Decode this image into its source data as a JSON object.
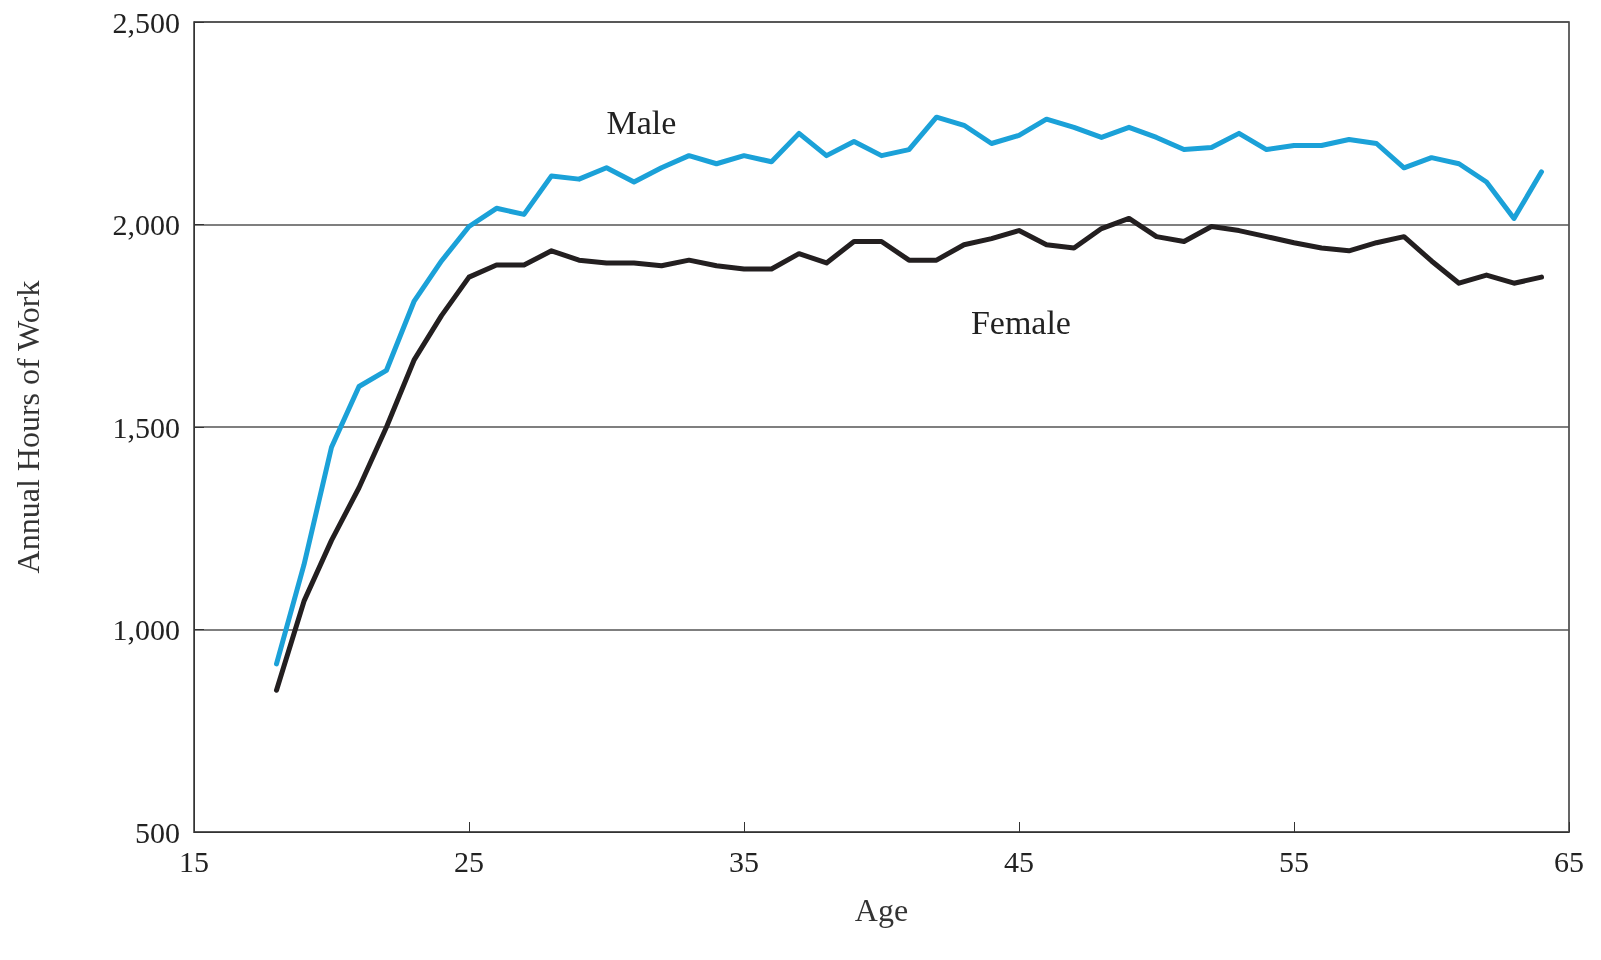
{
  "chart_data": {
    "type": "line",
    "xlabel": "Age",
    "ylabel": "Annual Hours of Work",
    "x": [
      18,
      19,
      20,
      21,
      22,
      23,
      24,
      25,
      26,
      27,
      28,
      29,
      30,
      31,
      32,
      33,
      34,
      35,
      36,
      37,
      38,
      39,
      40,
      41,
      42,
      43,
      44,
      45,
      46,
      47,
      48,
      49,
      50,
      51,
      52,
      53,
      54,
      55,
      56,
      57,
      58,
      59,
      60,
      61,
      62,
      63,
      64
    ],
    "series": [
      {
        "name": "Male",
        "color": "#1ba1d8",
        "values": [
          915,
          1160,
          1450,
          1600,
          1640,
          1810,
          1910,
          1995,
          2040,
          2025,
          2120,
          2112,
          2140,
          2105,
          2140,
          2170,
          2150,
          2170,
          2155,
          2225,
          2170,
          2205,
          2170,
          2185,
          2265,
          2245,
          2200,
          2220,
          2260,
          2240,
          2215,
          2240,
          2215,
          2185,
          2190,
          2225,
          2185,
          2195,
          2195,
          2210,
          2200,
          2140,
          2165,
          2150,
          2105,
          2015,
          2130
        ]
      },
      {
        "name": "Female",
        "color": "#231f20",
        "values": [
          850,
          1070,
          1220,
          1350,
          1500,
          1665,
          1775,
          1870,
          1900,
          1900,
          1935,
          1912,
          1905,
          1905,
          1898,
          1912,
          1898,
          1890,
          1890,
          1928,
          1905,
          1958,
          1958,
          1912,
          1912,
          1950,
          1965,
          1985,
          1950,
          1942,
          1990,
          2015,
          1970,
          1958,
          1995,
          1985,
          1970,
          1955,
          1942,
          1935,
          1955,
          1970,
          1910,
          1855,
          1875,
          1855,
          1870
        ]
      }
    ],
    "xlim": [
      15,
      65
    ],
    "xticks": [
      15,
      25,
      35,
      45,
      55,
      65
    ],
    "ylim": [
      500,
      2500
    ],
    "yticks": [
      {
        "value": 500,
        "label": "500"
      },
      {
        "value": 1000,
        "label": "1,000"
      },
      {
        "value": 1500,
        "label": "1,500"
      },
      {
        "value": 2000,
        "label": "2,000"
      },
      {
        "value": 2500,
        "label": "2,500"
      }
    ],
    "grid": "y",
    "legend": false,
    "marker": "none",
    "line_style": "solid"
  }
}
